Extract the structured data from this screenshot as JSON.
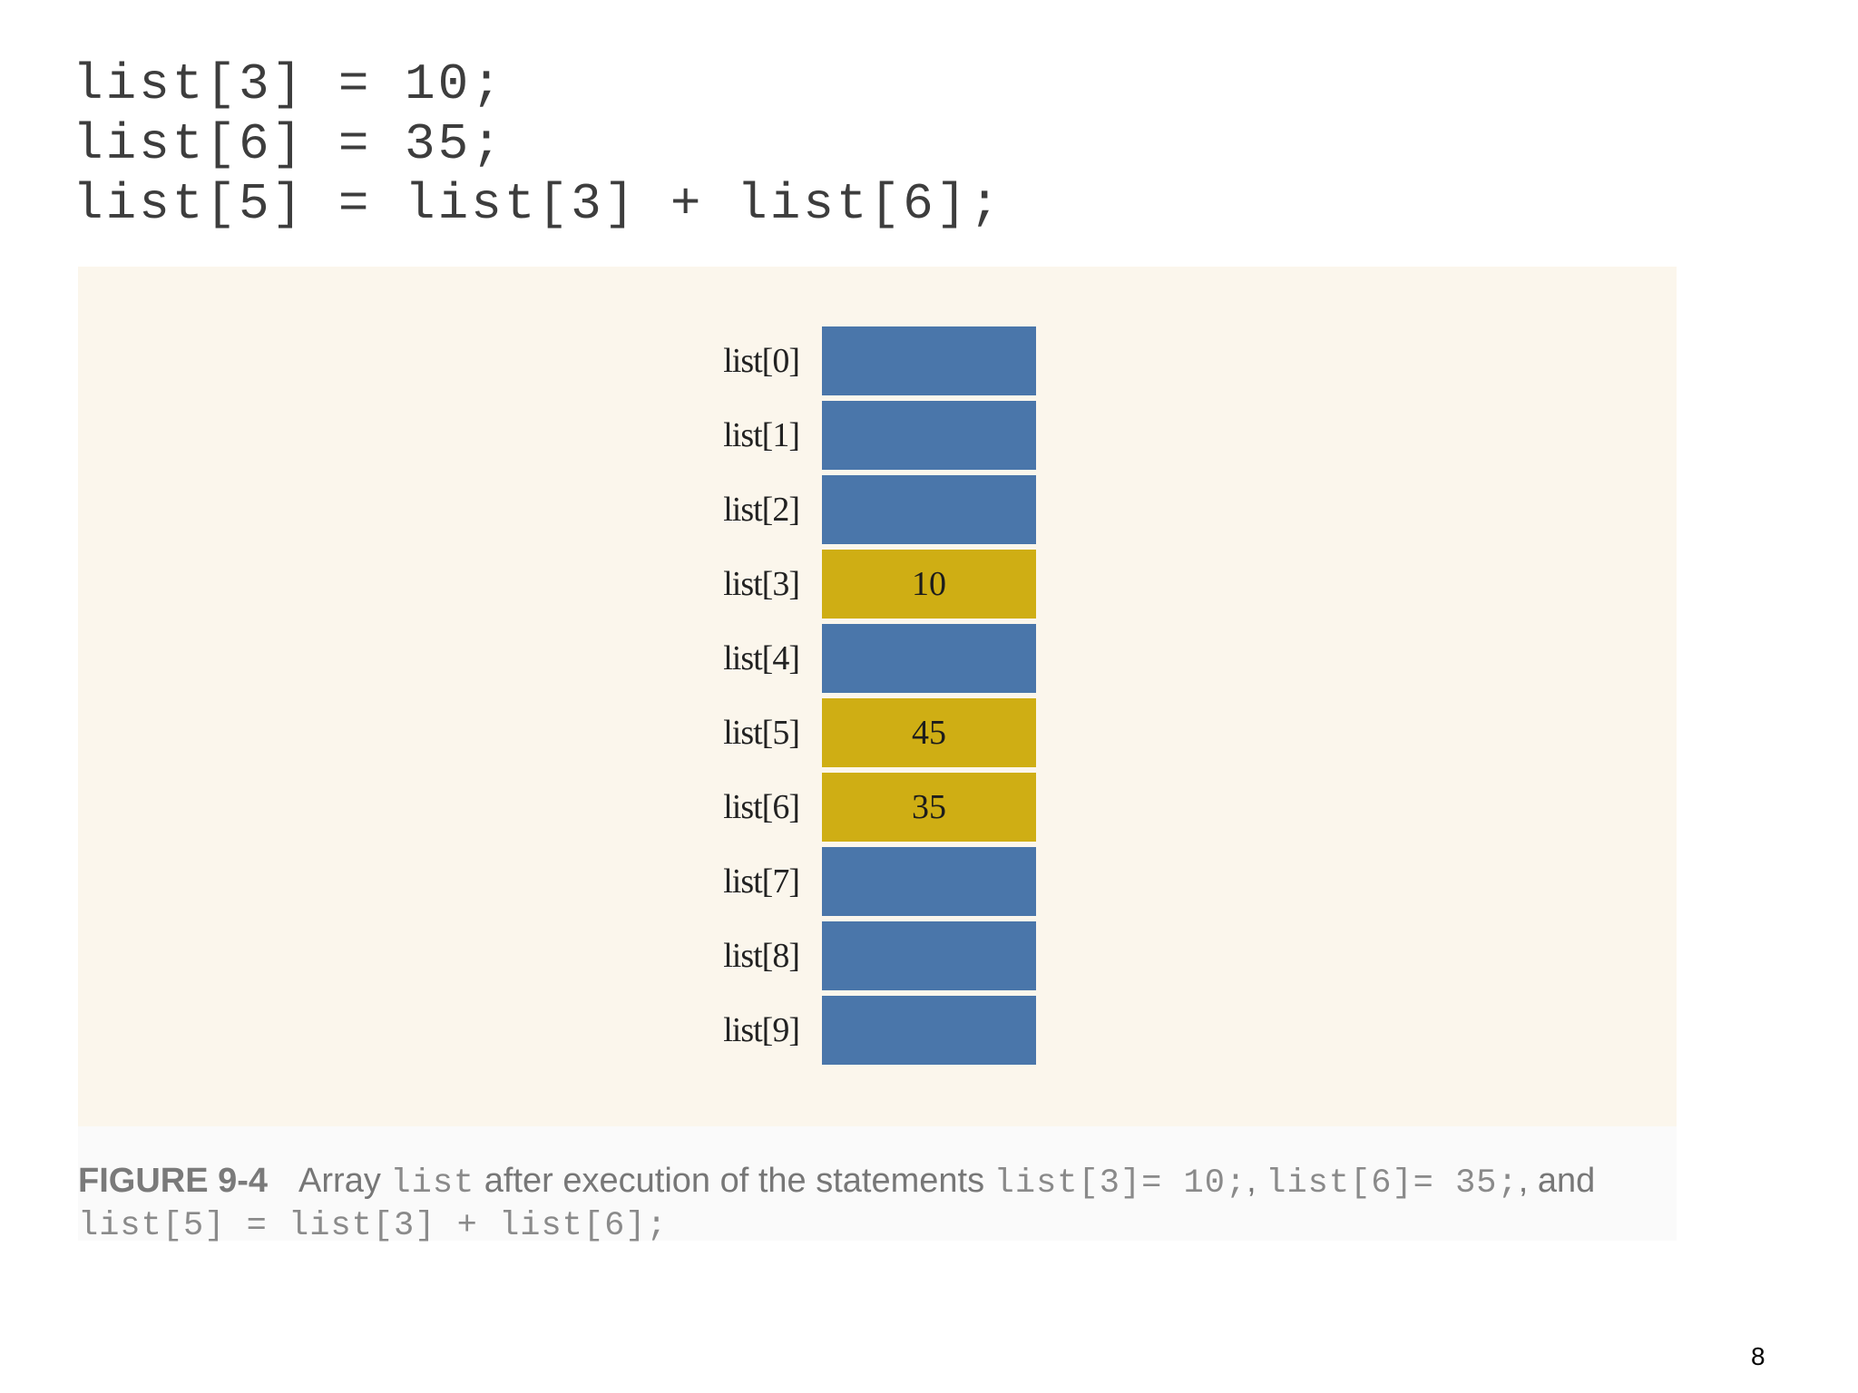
{
  "code": {
    "lines": [
      "list[3] = 10;",
      "list[6] = 35;",
      "list[5] = list[3] + list[6];"
    ]
  },
  "colors": {
    "empty_cell": "#4a76aa",
    "filled_cell": "#cfae14",
    "panel_background": "#fbf6ec"
  },
  "array": {
    "cells": [
      {
        "label": "list[0]",
        "value": "",
        "state": "empty"
      },
      {
        "label": "list[1]",
        "value": "",
        "state": "empty"
      },
      {
        "label": "list[2]",
        "value": "",
        "state": "empty"
      },
      {
        "label": "list[3]",
        "value": "10",
        "state": "filled"
      },
      {
        "label": "list[4]",
        "value": "",
        "state": "empty"
      },
      {
        "label": "list[5]",
        "value": "45",
        "state": "filled"
      },
      {
        "label": "list[6]",
        "value": "35",
        "state": "filled"
      },
      {
        "label": "list[7]",
        "value": "",
        "state": "empty"
      },
      {
        "label": "list[8]",
        "value": "",
        "state": "empty"
      },
      {
        "label": "list[9]",
        "value": "",
        "state": "empty"
      }
    ]
  },
  "caption": {
    "figure_label": "FIGURE 9-4",
    "text_1": "Array ",
    "code_1": "list",
    "text_2": " after execution of the statements ",
    "code_2": "list[3]= 10;",
    "text_3": ", ",
    "code_3": "list[6]= 35;",
    "text_4": ", and",
    "code_4": "list[5] = list[3] + list[6];"
  },
  "page_number": "8"
}
